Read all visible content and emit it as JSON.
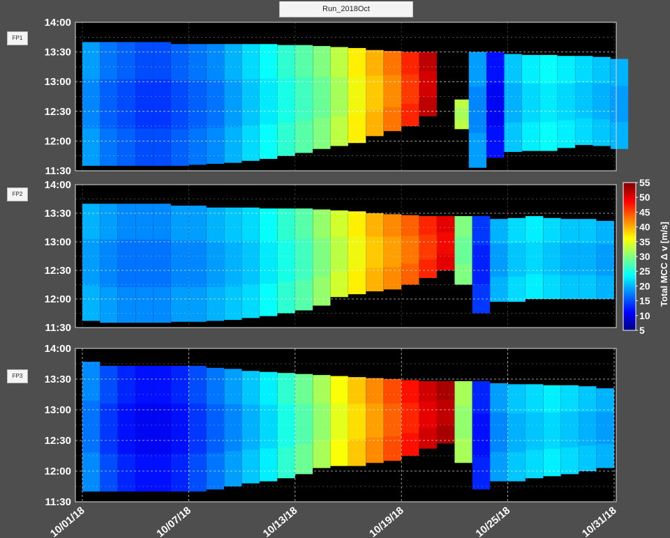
{
  "window": {
    "title": "Run_2018Oct"
  },
  "panels": [
    "FP1",
    "FP2",
    "FP3"
  ],
  "colors": {
    "background": "#4e4e4e",
    "plot_background": "#000000",
    "grid": "#ffffff"
  },
  "chart_data": {
    "type": "heatmap",
    "title": "Run_2018Oct",
    "x_axis": {
      "range": [
        "10/01/18",
        "10/31/18"
      ],
      "tick_labels": [
        "10/01/18",
        "10/07/18",
        "10/13/18",
        "10/19/18",
        "10/25/18",
        "10/31/18"
      ],
      "tick_days": [
        1,
        7,
        13,
        19,
        25,
        31
      ]
    },
    "y_axis": {
      "range": [
        "11:30",
        "14:00"
      ],
      "tick_labels": [
        "11:30",
        "12:00",
        "12:30",
        "13:00",
        "13:30",
        "14:00"
      ]
    },
    "colorbar": {
      "label": "Total MCC Δ v [m/s]",
      "range": [
        5,
        55
      ],
      "ticks": [
        "5",
        "10",
        "15",
        "20",
        "25",
        "30",
        "35",
        "40",
        "45",
        "50",
        "55"
      ],
      "colormap": "jet"
    },
    "panels": [
      {
        "name": "FP1",
        "columns": [
          {
            "day": 1.0,
            "top": "13:40",
            "bottom": "11:35",
            "value": 19
          },
          {
            "day": 2.0,
            "top": "13:40",
            "bottom": "11:35",
            "value": 17
          },
          {
            "day": 3.0,
            "top": "13:40",
            "bottom": "11:35",
            "value": 16
          },
          {
            "day": 4.0,
            "top": "13:40",
            "bottom": "11:35",
            "value": 15
          },
          {
            "day": 5.0,
            "top": "13:40",
            "bottom": "11:35",
            "value": 15
          },
          {
            "day": 6.0,
            "top": "13:38",
            "bottom": "11:35",
            "value": 16
          },
          {
            "day": 7.0,
            "top": "13:38",
            "bottom": "11:36",
            "value": 17
          },
          {
            "day": 8.0,
            "top": "13:38",
            "bottom": "11:37",
            "value": 18
          },
          {
            "day": 9.0,
            "top": "13:38",
            "bottom": "11:38",
            "value": 20
          },
          {
            "day": 10.0,
            "top": "13:38",
            "bottom": "11:40",
            "value": 22
          },
          {
            "day": 11.0,
            "top": "13:38",
            "bottom": "11:42",
            "value": 24
          },
          {
            "day": 12.0,
            "top": "13:37",
            "bottom": "11:45",
            "value": 26
          },
          {
            "day": 13.0,
            "top": "13:37",
            "bottom": "11:48",
            "value": 28
          },
          {
            "day": 14.0,
            "top": "13:36",
            "bottom": "11:52",
            "value": 30
          },
          {
            "day": 15.0,
            "top": "13:35",
            "bottom": "11:55",
            "value": 33
          },
          {
            "day": 16.0,
            "top": "13:34",
            "bottom": "11:58",
            "value": 37
          },
          {
            "day": 17.0,
            "top": "13:32",
            "bottom": "12:05",
            "value": 40
          },
          {
            "day": 18.0,
            "top": "13:31",
            "bottom": "12:10",
            "value": 43
          },
          {
            "day": 19.0,
            "top": "13:30",
            "bottom": "12:15",
            "value": 47
          },
          {
            "day": 20.0,
            "top": "13:30",
            "bottom": "12:25",
            "value": 52
          },
          {
            "day": 22.0,
            "top": "12:42",
            "bottom": "12:12",
            "value": 33
          },
          {
            "day": 22.8,
            "top": "13:30",
            "bottom": "11:33",
            "value": 19
          },
          {
            "day": 23.8,
            "top": "13:30",
            "bottom": "11:43",
            "value": 12
          },
          {
            "day": 24.8,
            "top": "13:28",
            "bottom": "11:49",
            "value": 21
          },
          {
            "day": 25.8,
            "top": "13:27",
            "bottom": "11:50",
            "value": 23
          },
          {
            "day": 26.8,
            "top": "13:27",
            "bottom": "11:50",
            "value": 24
          },
          {
            "day": 27.8,
            "top": "13:26",
            "bottom": "11:53",
            "value": 23
          },
          {
            "day": 28.8,
            "top": "13:26",
            "bottom": "11:56",
            "value": 22
          },
          {
            "day": 29.8,
            "top": "13:25",
            "bottom": "11:55",
            "value": 21
          },
          {
            "day": 30.8,
            "top": "13:23",
            "bottom": "11:52",
            "value": 20
          }
        ]
      },
      {
        "name": "FP2",
        "columns": [
          {
            "day": 1.0,
            "top": "13:40",
            "bottom": "11:37",
            "value": 20
          },
          {
            "day": 2.0,
            "top": "13:40",
            "bottom": "11:35",
            "value": 19
          },
          {
            "day": 3.0,
            "top": "13:40",
            "bottom": "11:35",
            "value": 18
          },
          {
            "day": 4.0,
            "top": "13:40",
            "bottom": "11:35",
            "value": 18
          },
          {
            "day": 5.0,
            "top": "13:40",
            "bottom": "11:35",
            "value": 18
          },
          {
            "day": 6.0,
            "top": "13:38",
            "bottom": "11:36",
            "value": 19
          },
          {
            "day": 7.0,
            "top": "13:38",
            "bottom": "11:36",
            "value": 19
          },
          {
            "day": 8.0,
            "top": "13:36",
            "bottom": "11:37",
            "value": 20
          },
          {
            "day": 9.0,
            "top": "13:36",
            "bottom": "11:38",
            "value": 21
          },
          {
            "day": 10.0,
            "top": "13:36",
            "bottom": "11:40",
            "value": 22
          },
          {
            "day": 11.0,
            "top": "13:35",
            "bottom": "11:42",
            "value": 24
          },
          {
            "day": 12.0,
            "top": "13:35",
            "bottom": "11:45",
            "value": 26
          },
          {
            "day": 13.0,
            "top": "13:35",
            "bottom": "11:48",
            "value": 28
          },
          {
            "day": 14.0,
            "top": "13:34",
            "bottom": "11:53",
            "value": 31
          },
          {
            "day": 15.0,
            "top": "13:33",
            "bottom": "12:02",
            "value": 34
          },
          {
            "day": 16.0,
            "top": "13:32",
            "bottom": "12:05",
            "value": 37
          },
          {
            "day": 17.0,
            "top": "13:30",
            "bottom": "12:08",
            "value": 40
          },
          {
            "day": 18.0,
            "top": "13:29",
            "bottom": "12:10",
            "value": 42
          },
          {
            "day": 19.0,
            "top": "13:28",
            "bottom": "12:15",
            "value": 44
          },
          {
            "day": 20.0,
            "top": "13:27",
            "bottom": "12:22",
            "value": 47
          },
          {
            "day": 21.0,
            "top": "13:27",
            "bottom": "12:30",
            "value": 50
          },
          {
            "day": 22.0,
            "top": "13:27",
            "bottom": "12:15",
            "value": 30
          },
          {
            "day": 23.0,
            "top": "13:27",
            "bottom": "11:45",
            "value": 14
          },
          {
            "day": 24.0,
            "top": "13:24",
            "bottom": "11:57",
            "value": 20
          },
          {
            "day": 25.0,
            "top": "13:25",
            "bottom": "11:57",
            "value": 22
          },
          {
            "day": 26.0,
            "top": "13:27",
            "bottom": "12:00",
            "value": 23
          },
          {
            "day": 27.0,
            "top": "13:25",
            "bottom": "12:00",
            "value": 22
          },
          {
            "day": 28.0,
            "top": "13:24",
            "bottom": "12:00",
            "value": 21
          },
          {
            "day": 29.0,
            "top": "13:24",
            "bottom": "12:00",
            "value": 21
          },
          {
            "day": 30.0,
            "top": "13:22",
            "bottom": "12:00",
            "value": 20
          }
        ]
      },
      {
        "name": "FP3",
        "columns": [
          {
            "day": 1.0,
            "top": "13:47",
            "bottom": "11:40",
            "value": 18
          },
          {
            "day": 2.0,
            "top": "13:43",
            "bottom": "11:40",
            "value": 15
          },
          {
            "day": 3.0,
            "top": "13:43",
            "bottom": "11:40",
            "value": 13
          },
          {
            "day": 4.0,
            "top": "13:43",
            "bottom": "11:40",
            "value": 12
          },
          {
            "day": 5.0,
            "top": "13:43",
            "bottom": "11:40",
            "value": 12
          },
          {
            "day": 6.0,
            "top": "13:43",
            "bottom": "11:40",
            "value": 13
          },
          {
            "day": 7.0,
            "top": "13:43",
            "bottom": "11:40",
            "value": 15
          },
          {
            "day": 8.0,
            "top": "13:41",
            "bottom": "11:42",
            "value": 17
          },
          {
            "day": 9.0,
            "top": "13:40",
            "bottom": "11:45",
            "value": 19
          },
          {
            "day": 10.0,
            "top": "13:38",
            "bottom": "11:48",
            "value": 21
          },
          {
            "day": 11.0,
            "top": "13:37",
            "bottom": "11:50",
            "value": 23
          },
          {
            "day": 12.0,
            "top": "13:36",
            "bottom": "11:53",
            "value": 26
          },
          {
            "day": 13.0,
            "top": "13:35",
            "bottom": "11:57",
            "value": 29
          },
          {
            "day": 14.0,
            "top": "13:34",
            "bottom": "12:03",
            "value": 32
          },
          {
            "day": 15.0,
            "top": "13:33",
            "bottom": "12:05",
            "value": 36
          },
          {
            "day": 16.0,
            "top": "13:32",
            "bottom": "12:05",
            "value": 39
          },
          {
            "day": 17.0,
            "top": "13:31",
            "bottom": "12:08",
            "value": 42
          },
          {
            "day": 18.0,
            "top": "13:30",
            "bottom": "12:10",
            "value": 45
          },
          {
            "day": 19.0,
            "top": "13:29",
            "bottom": "12:15",
            "value": 48
          },
          {
            "day": 20.0,
            "top": "13:28",
            "bottom": "12:22",
            "value": 51
          },
          {
            "day": 21.0,
            "top": "13:28",
            "bottom": "12:27",
            "value": 53
          },
          {
            "day": 22.0,
            "top": "13:28",
            "bottom": "12:08",
            "value": 32
          },
          {
            "day": 23.0,
            "top": "13:28",
            "bottom": "11:42",
            "value": 13
          },
          {
            "day": 24.0,
            "top": "13:26",
            "bottom": "11:50",
            "value": 19
          },
          {
            "day": 25.0,
            "top": "13:25",
            "bottom": "11:50",
            "value": 21
          },
          {
            "day": 26.0,
            "top": "13:25",
            "bottom": "11:53",
            "value": 22
          },
          {
            "day": 27.0,
            "top": "13:24",
            "bottom": "11:55",
            "value": 23
          },
          {
            "day": 28.0,
            "top": "13:24",
            "bottom": "11:57",
            "value": 22
          },
          {
            "day": 29.0,
            "top": "13:23",
            "bottom": "12:00",
            "value": 21
          },
          {
            "day": 30.0,
            "top": "13:21",
            "bottom": "12:03",
            "value": 20
          }
        ]
      }
    ]
  }
}
